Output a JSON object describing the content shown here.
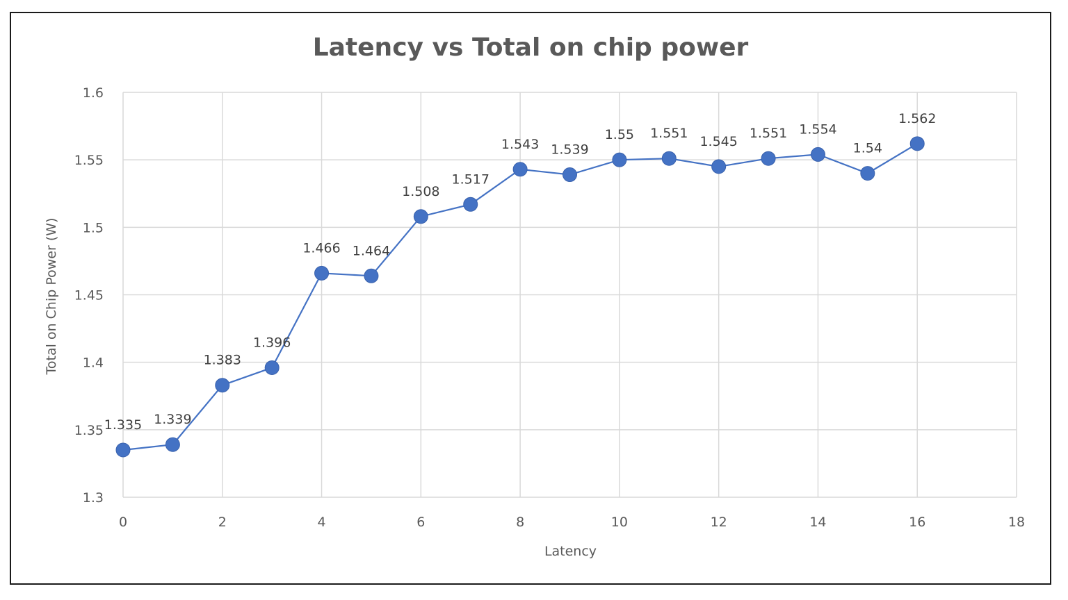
{
  "chart_data": {
    "type": "line",
    "title": "Latency vs Total on chip power",
    "xlabel": "Latency",
    "ylabel": "Total on Chip Power (W)",
    "xlim": [
      0,
      18
    ],
    "ylim": [
      1.3,
      1.6
    ],
    "xticks": [
      0,
      2,
      4,
      6,
      8,
      10,
      12,
      14,
      16,
      18
    ],
    "yticks": [
      "1.3",
      "1.35",
      "1.4",
      "1.45",
      "1.5",
      "1.55",
      "1.6"
    ],
    "grid": true,
    "legend": "none",
    "series": [
      {
        "color": "#4472C4",
        "x": [
          0,
          1,
          2,
          3,
          4,
          5,
          6,
          7,
          8,
          9,
          10,
          11,
          12,
          13,
          14,
          15,
          16
        ],
        "y": [
          1.335,
          1.339,
          1.383,
          1.396,
          1.466,
          1.464,
          1.508,
          1.517,
          1.543,
          1.539,
          1.55,
          1.551,
          1.545,
          1.551,
          1.554,
          1.54,
          1.562
        ],
        "labels": [
          "1.335",
          "1.339",
          "1.383",
          "1.396",
          "1.466",
          "1.464",
          "1.508",
          "1.517",
          "1.543",
          "1.539",
          "1.55",
          "1.551",
          "1.545",
          "1.551",
          "1.554",
          "1.54",
          "1.562"
        ]
      }
    ]
  }
}
